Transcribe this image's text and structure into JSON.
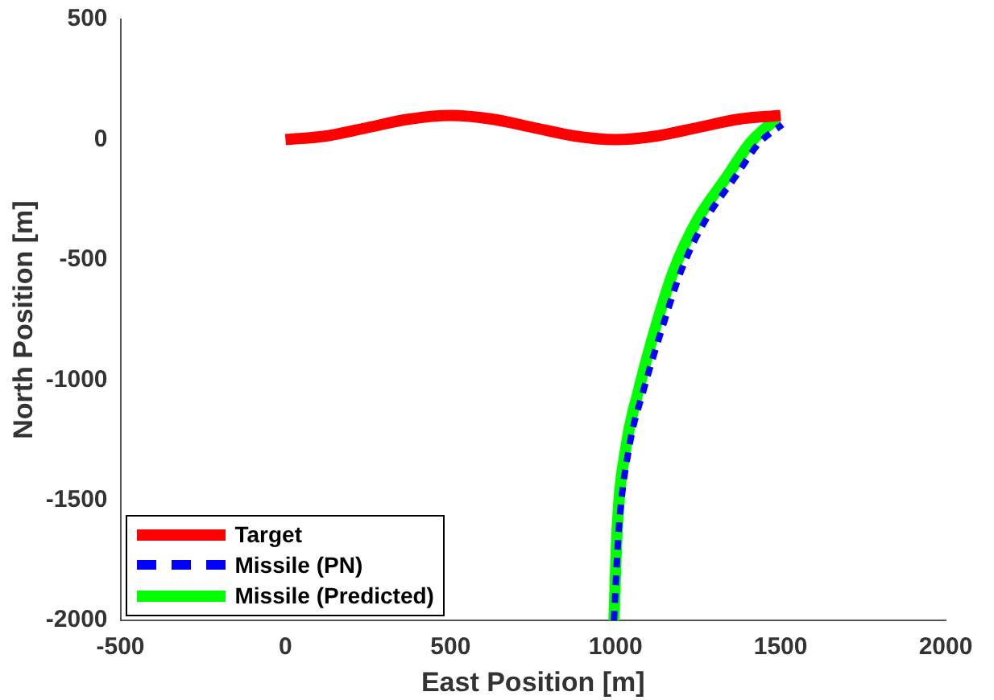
{
  "chart_data": {
    "type": "line",
    "xlabel": "East Position [m]",
    "ylabel": "North Position [m]",
    "xlim": [
      -500,
      2000
    ],
    "xticks": [
      -500,
      0,
      500,
      1000,
      1500,
      2000
    ],
    "ylim": [
      -2000,
      500
    ],
    "yticks": [
      -2000,
      -1500,
      -1000,
      -500,
      0,
      500
    ],
    "grid": false,
    "legend": "bottom left",
    "marker": "none",
    "series": [
      {
        "name": "Target",
        "color": "#ff0000",
        "line_style": "solid",
        "x": [
          0,
          125,
          250,
          375,
          500,
          625,
          750,
          875,
          1000,
          1125,
          1250,
          1375,
          1500
        ],
        "values": [
          0,
          15,
          50,
          85,
          100,
          85,
          50,
          15,
          0,
          15,
          50,
          85,
          100
        ]
      },
      {
        "name": "Missile (PN)",
        "color": "#0000ff",
        "line_style": "dashed",
        "x": [
          995,
          1010,
          1042,
          1085,
          1145,
          1200,
          1272,
          1365,
          1435,
          1505
        ],
        "values": [
          -2000,
          -1617,
          -1274,
          -1041,
          -767,
          -541,
          -336,
          -151,
          -14,
          62
        ]
      },
      {
        "name": "Missile (Predicted)",
        "color": "#00ff00",
        "line_style": "solid",
        "x": [
          995,
          1005,
          1032,
          1070,
          1124,
          1177,
          1247,
          1339,
          1408,
          1489
        ],
        "values": [
          -2000,
          -1617,
          -1274,
          -1041,
          -767,
          -541,
          -336,
          -151,
          -14,
          89
        ]
      }
    ]
  }
}
